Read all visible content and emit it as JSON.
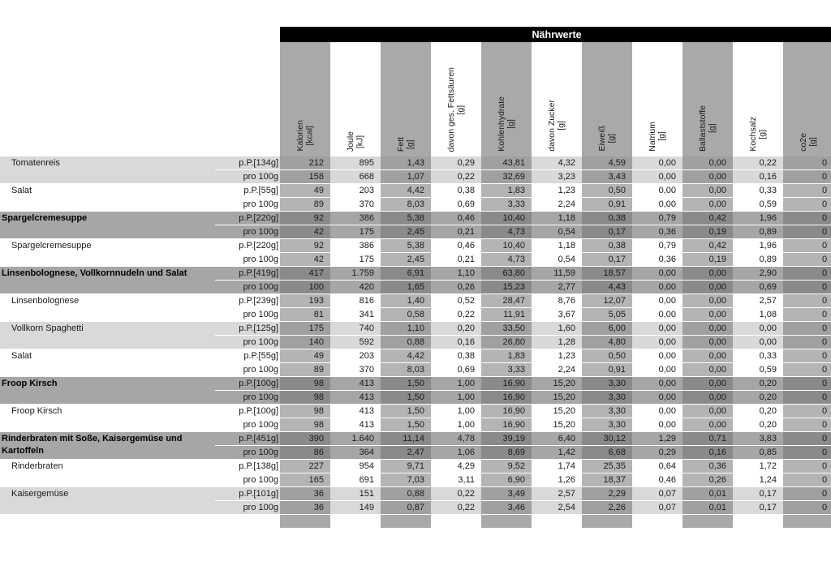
{
  "title": "Nährwerte",
  "columns": [
    {
      "name": "Kalorien",
      "unit": "[kcal]"
    },
    {
      "name": "Joule",
      "unit": "[kJ]"
    },
    {
      "name": "Fett",
      "unit": "[g]"
    },
    {
      "name": "davon ges. Fettsäuren",
      "unit": "[g]"
    },
    {
      "name": "Kohlenhydrate",
      "unit": "[g]"
    },
    {
      "name": "davon Zucker",
      "unit": "[g]"
    },
    {
      "name": "Eiweiß",
      "unit": "[g]"
    },
    {
      "name": "Natrium",
      "unit": "[g]"
    },
    {
      "name": "Ballaststoffe",
      "unit": "[g]"
    },
    {
      "name": "Kochsalz",
      "unit": "[g]"
    },
    {
      "name": "co2e",
      "unit": "[g]"
    }
  ],
  "items": [
    {
      "name": "Tomatenreis",
      "shade": "light",
      "rows": [
        {
          "portion": "p.P.[134g]",
          "values": [
            "212",
            "895",
            "1,43",
            "0,29",
            "43,81",
            "4,32",
            "4,59",
            "0,00",
            "0,00",
            "0,22",
            "0"
          ]
        },
        {
          "portion": "pro 100g",
          "values": [
            "158",
            "668",
            "1,07",
            "0,22",
            "32,69",
            "3,23",
            "3,43",
            "0,00",
            "0,00",
            "0,16",
            "0"
          ]
        }
      ]
    },
    {
      "name": "Salat",
      "shade": "white",
      "rows": [
        {
          "portion": "p.P.[55g]",
          "values": [
            "49",
            "203",
            "4,42",
            "0,38",
            "1,83",
            "1,23",
            "0,50",
            "0,00",
            "0,00",
            "0,33",
            "0"
          ]
        },
        {
          "portion": "pro 100g",
          "values": [
            "89",
            "370",
            "8,03",
            "0,69",
            "3,33",
            "2,24",
            "0,91",
            "0,00",
            "0,00",
            "0,59",
            "0"
          ]
        }
      ]
    },
    {
      "name": "Spargelcremesuppe",
      "shade": "section",
      "rows": [
        {
          "portion": "p.P.[220g]",
          "values": [
            "92",
            "386",
            "5,38",
            "0,46",
            "10,40",
            "1,18",
            "0,38",
            "0,79",
            "0,42",
            "1,96",
            "0"
          ]
        },
        {
          "portion": "pro 100g",
          "values": [
            "42",
            "175",
            "2,45",
            "0,21",
            "4,73",
            "0,54",
            "0,17",
            "0,36",
            "0,19",
            "0,89",
            "0"
          ]
        }
      ]
    },
    {
      "name": "Spargelcremesuppe",
      "shade": "white",
      "rows": [
        {
          "portion": "p.P.[220g]",
          "values": [
            "92",
            "386",
            "5,38",
            "0,46",
            "10,40",
            "1,18",
            "0,38",
            "0,79",
            "0,42",
            "1,96",
            "0"
          ]
        },
        {
          "portion": "pro 100g",
          "values": [
            "42",
            "175",
            "2,45",
            "0,21",
            "4,73",
            "0,54",
            "0,17",
            "0,36",
            "0,19",
            "0,89",
            "0"
          ]
        }
      ]
    },
    {
      "name": "Linsenbolognese, Vollkornnudeln und Salat",
      "shade": "section",
      "rows": [
        {
          "portion": "p.P.[419g]",
          "values": [
            "417",
            "1.759",
            "6,91",
            "1,10",
            "63,80",
            "11,59",
            "18,57",
            "0,00",
            "0,00",
            "2,90",
            "0"
          ]
        },
        {
          "portion": "pro 100g",
          "values": [
            "100",
            "420",
            "1,65",
            "0,26",
            "15,23",
            "2,77",
            "4,43",
            "0,00",
            "0,00",
            "0,69",
            "0"
          ]
        }
      ]
    },
    {
      "name": "Linsenbolognese",
      "shade": "white",
      "rows": [
        {
          "portion": "p.P.[239g]",
          "values": [
            "193",
            "816",
            "1,40",
            "0,52",
            "28,47",
            "8,76",
            "12,07",
            "0,00",
            "0,00",
            "2,57",
            "0"
          ]
        },
        {
          "portion": "pro 100g",
          "values": [
            "81",
            "341",
            "0,58",
            "0,22",
            "11,91",
            "3,67",
            "5,05",
            "0,00",
            "0,00",
            "1,08",
            "0"
          ]
        }
      ]
    },
    {
      "name": "Vollkorn Spaghetti",
      "shade": "light",
      "rows": [
        {
          "portion": "p.P.[125g]",
          "values": [
            "175",
            "740",
            "1,10",
            "0,20",
            "33,50",
            "1,60",
            "6,00",
            "0,00",
            "0,00",
            "0,00",
            "0"
          ]
        },
        {
          "portion": "pro 100g",
          "values": [
            "140",
            "592",
            "0,88",
            "0,16",
            "26,80",
            "1,28",
            "4,80",
            "0,00",
            "0,00",
            "0,00",
            "0"
          ]
        }
      ]
    },
    {
      "name": "Salat",
      "shade": "white",
      "rows": [
        {
          "portion": "p.P.[55g]",
          "values": [
            "49",
            "203",
            "4,42",
            "0,38",
            "1,83",
            "1,23",
            "0,50",
            "0,00",
            "0,00",
            "0,33",
            "0"
          ]
        },
        {
          "portion": "pro 100g",
          "values": [
            "89",
            "370",
            "8,03",
            "0,69",
            "3,33",
            "2,24",
            "0,91",
            "0,00",
            "0,00",
            "0,59",
            "0"
          ]
        }
      ]
    },
    {
      "name": "Froop Kirsch",
      "shade": "section",
      "rows": [
        {
          "portion": "p.P.[100g]",
          "values": [
            "98",
            "413",
            "1,50",
            "1,00",
            "16,90",
            "15,20",
            "3,30",
            "0,00",
            "0,00",
            "0,20",
            "0"
          ]
        },
        {
          "portion": "pro 100g",
          "values": [
            "98",
            "413",
            "1,50",
            "1,00",
            "16,90",
            "15,20",
            "3,30",
            "0,00",
            "0,00",
            "0,20",
            "0"
          ]
        }
      ]
    },
    {
      "name": "Froop Kirsch",
      "shade": "white",
      "rows": [
        {
          "portion": "p.P.[100g]",
          "values": [
            "98",
            "413",
            "1,50",
            "1,00",
            "16,90",
            "15,20",
            "3,30",
            "0,00",
            "0,00",
            "0,20",
            "0"
          ]
        },
        {
          "portion": "pro 100g",
          "values": [
            "98",
            "413",
            "1,50",
            "1,00",
            "16,90",
            "15,20",
            "3,30",
            "0,00",
            "0,00",
            "0,20",
            "0"
          ]
        }
      ]
    },
    {
      "name": "Rinderbraten mit Soße, Kaisergemüse und Kartoffeln",
      "shade": "section",
      "rows": [
        {
          "portion": "p.P.[451g]",
          "values": [
            "390",
            "1.640",
            "11,14",
            "4,78",
            "39,19",
            "6,40",
            "30,12",
            "1,29",
            "0,71",
            "3,83",
            "0"
          ]
        },
        {
          "portion": "pro 100g",
          "values": [
            "86",
            "364",
            "2,47",
            "1,06",
            "8,69",
            "1,42",
            "6,68",
            "0,29",
            "0,16",
            "0,85",
            "0"
          ]
        }
      ]
    },
    {
      "name": "Rinderbraten",
      "shade": "white",
      "rows": [
        {
          "portion": "p.P.[138g]",
          "values": [
            "227",
            "954",
            "9,71",
            "4,29",
            "9,52",
            "1,74",
            "25,35",
            "0,64",
            "0,36",
            "1,72",
            "0"
          ]
        },
        {
          "portion": "pro 100g",
          "values": [
            "165",
            "691",
            "7,03",
            "3,11",
            "6,90",
            "1,26",
            "18,37",
            "0,46",
            "0,26",
            "1,24",
            "0"
          ]
        }
      ]
    },
    {
      "name": "Kaisergemüse",
      "shade": "light",
      "rows": [
        {
          "portion": "p.P.[101g]",
          "values": [
            "36",
            "151",
            "0,88",
            "0,22",
            "3,49",
            "2,57",
            "2,29",
            "0,07",
            "0,01",
            "0,17",
            "0"
          ]
        },
        {
          "portion": "pro 100g",
          "values": [
            "36",
            "149",
            "0,87",
            "0,22",
            "3,46",
            "2,54",
            "2,26",
            "0,07",
            "0,01",
            "0,17",
            "0"
          ]
        }
      ]
    }
  ]
}
